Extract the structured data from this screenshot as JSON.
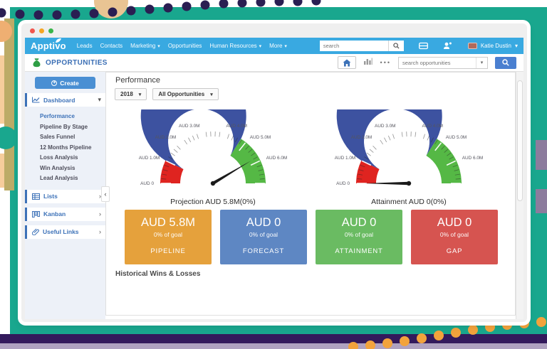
{
  "icons": {
    "caret_down": "▾",
    "chevron_right": "›",
    "chevron_left": "‹",
    "plus": "+"
  },
  "nav": {
    "brand": "Apptivo",
    "items": [
      {
        "label": "Leads",
        "caret": false
      },
      {
        "label": "Contacts",
        "caret": false
      },
      {
        "label": "Marketing",
        "caret": true
      },
      {
        "label": "Opportunities",
        "caret": false
      },
      {
        "label": "Human Resources",
        "caret": true
      },
      {
        "label": "More",
        "caret": true
      }
    ],
    "search_placeholder": "search",
    "user_name": "Katie Dustin"
  },
  "toolbar": {
    "app_title": "OPPORTUNITIES",
    "more_dots": "•••",
    "search_placeholder": "search opportunities"
  },
  "sidebar": {
    "create_label": "Create",
    "dashboard_label": "Dashboard",
    "dashboard_items": [
      "Performance",
      "Pipeline By Stage",
      "Sales Funnel",
      "12 Months Pipeline",
      "Loss Analysis",
      "Win Analysis",
      "Lead Analysis"
    ],
    "active_item": "Performance",
    "lists_label": "Lists",
    "kanban_label": "Kanban",
    "useful_links_label": "Useful Links"
  },
  "main": {
    "title": "Performance",
    "year_filter": "2018",
    "scope_filter": "All Opportunities",
    "historical_title": "Historical Wins & Losses"
  },
  "cards": [
    {
      "value": "AUD 5.8M",
      "subtitle": "0% of goal",
      "label": "PIPELINE",
      "color": "#E5A13C"
    },
    {
      "value": "AUD 0",
      "subtitle": "0% of goal",
      "label": "FORECAST",
      "color": "#5E87C3"
    },
    {
      "value": "AUD 0",
      "subtitle": "0% of goal",
      "label": "ATTAINMENT",
      "color": "#6ABB62"
    },
    {
      "value": "AUD 0",
      "subtitle": "0% of goal",
      "label": "GAP",
      "color": "#D65450"
    }
  ],
  "chart_data": [
    {
      "type": "gauge",
      "title": "Projection AUD 5.8M(0%)",
      "currency": "AUD",
      "min": 0,
      "max": 7000000,
      "minor_tick_step": 200000,
      "labeled_ticks": [
        0,
        1000000,
        2000000,
        3000000,
        4000000,
        5000000,
        6000000
      ],
      "tick_labels": [
        "AUD 0",
        "AUD 1.0M",
        "AUD 2.0M",
        "AUD 3.0M",
        "AUD 4.0M",
        "AUD 5.0M",
        "AUD 6.0M"
      ],
      "segments": [
        {
          "from": 0,
          "to": 1000000,
          "color": "#DF2420"
        },
        {
          "from": 1000000,
          "to": 4750000,
          "color": "#3D52A0"
        },
        {
          "from": 4750000,
          "to": 7000000,
          "color": "#55B845"
        }
      ],
      "value": 5800000,
      "value_label": "AUD 5.8M",
      "percent_label": "0%"
    },
    {
      "type": "gauge",
      "title": "Attainment AUD 0(0%)",
      "currency": "AUD",
      "min": 0,
      "max": 7000000,
      "minor_tick_step": 200000,
      "labeled_ticks": [
        0,
        1000000,
        2000000,
        3000000,
        4000000,
        5000000,
        6000000
      ],
      "tick_labels": [
        "AUD 0",
        "AUD 1.0M",
        "AUD 2.0M",
        "AUD 3.0M",
        "AUD 4.0M",
        "AUD 5.0M",
        "AUD 6.0M"
      ],
      "segments": [
        {
          "from": 0,
          "to": 1000000,
          "color": "#DF2420"
        },
        {
          "from": 1000000,
          "to": 4750000,
          "color": "#3D52A0"
        },
        {
          "from": 4750000,
          "to": 7000000,
          "color": "#55B845"
        }
      ],
      "value": 0,
      "value_label": "AUD 0",
      "percent_label": "0%"
    }
  ]
}
